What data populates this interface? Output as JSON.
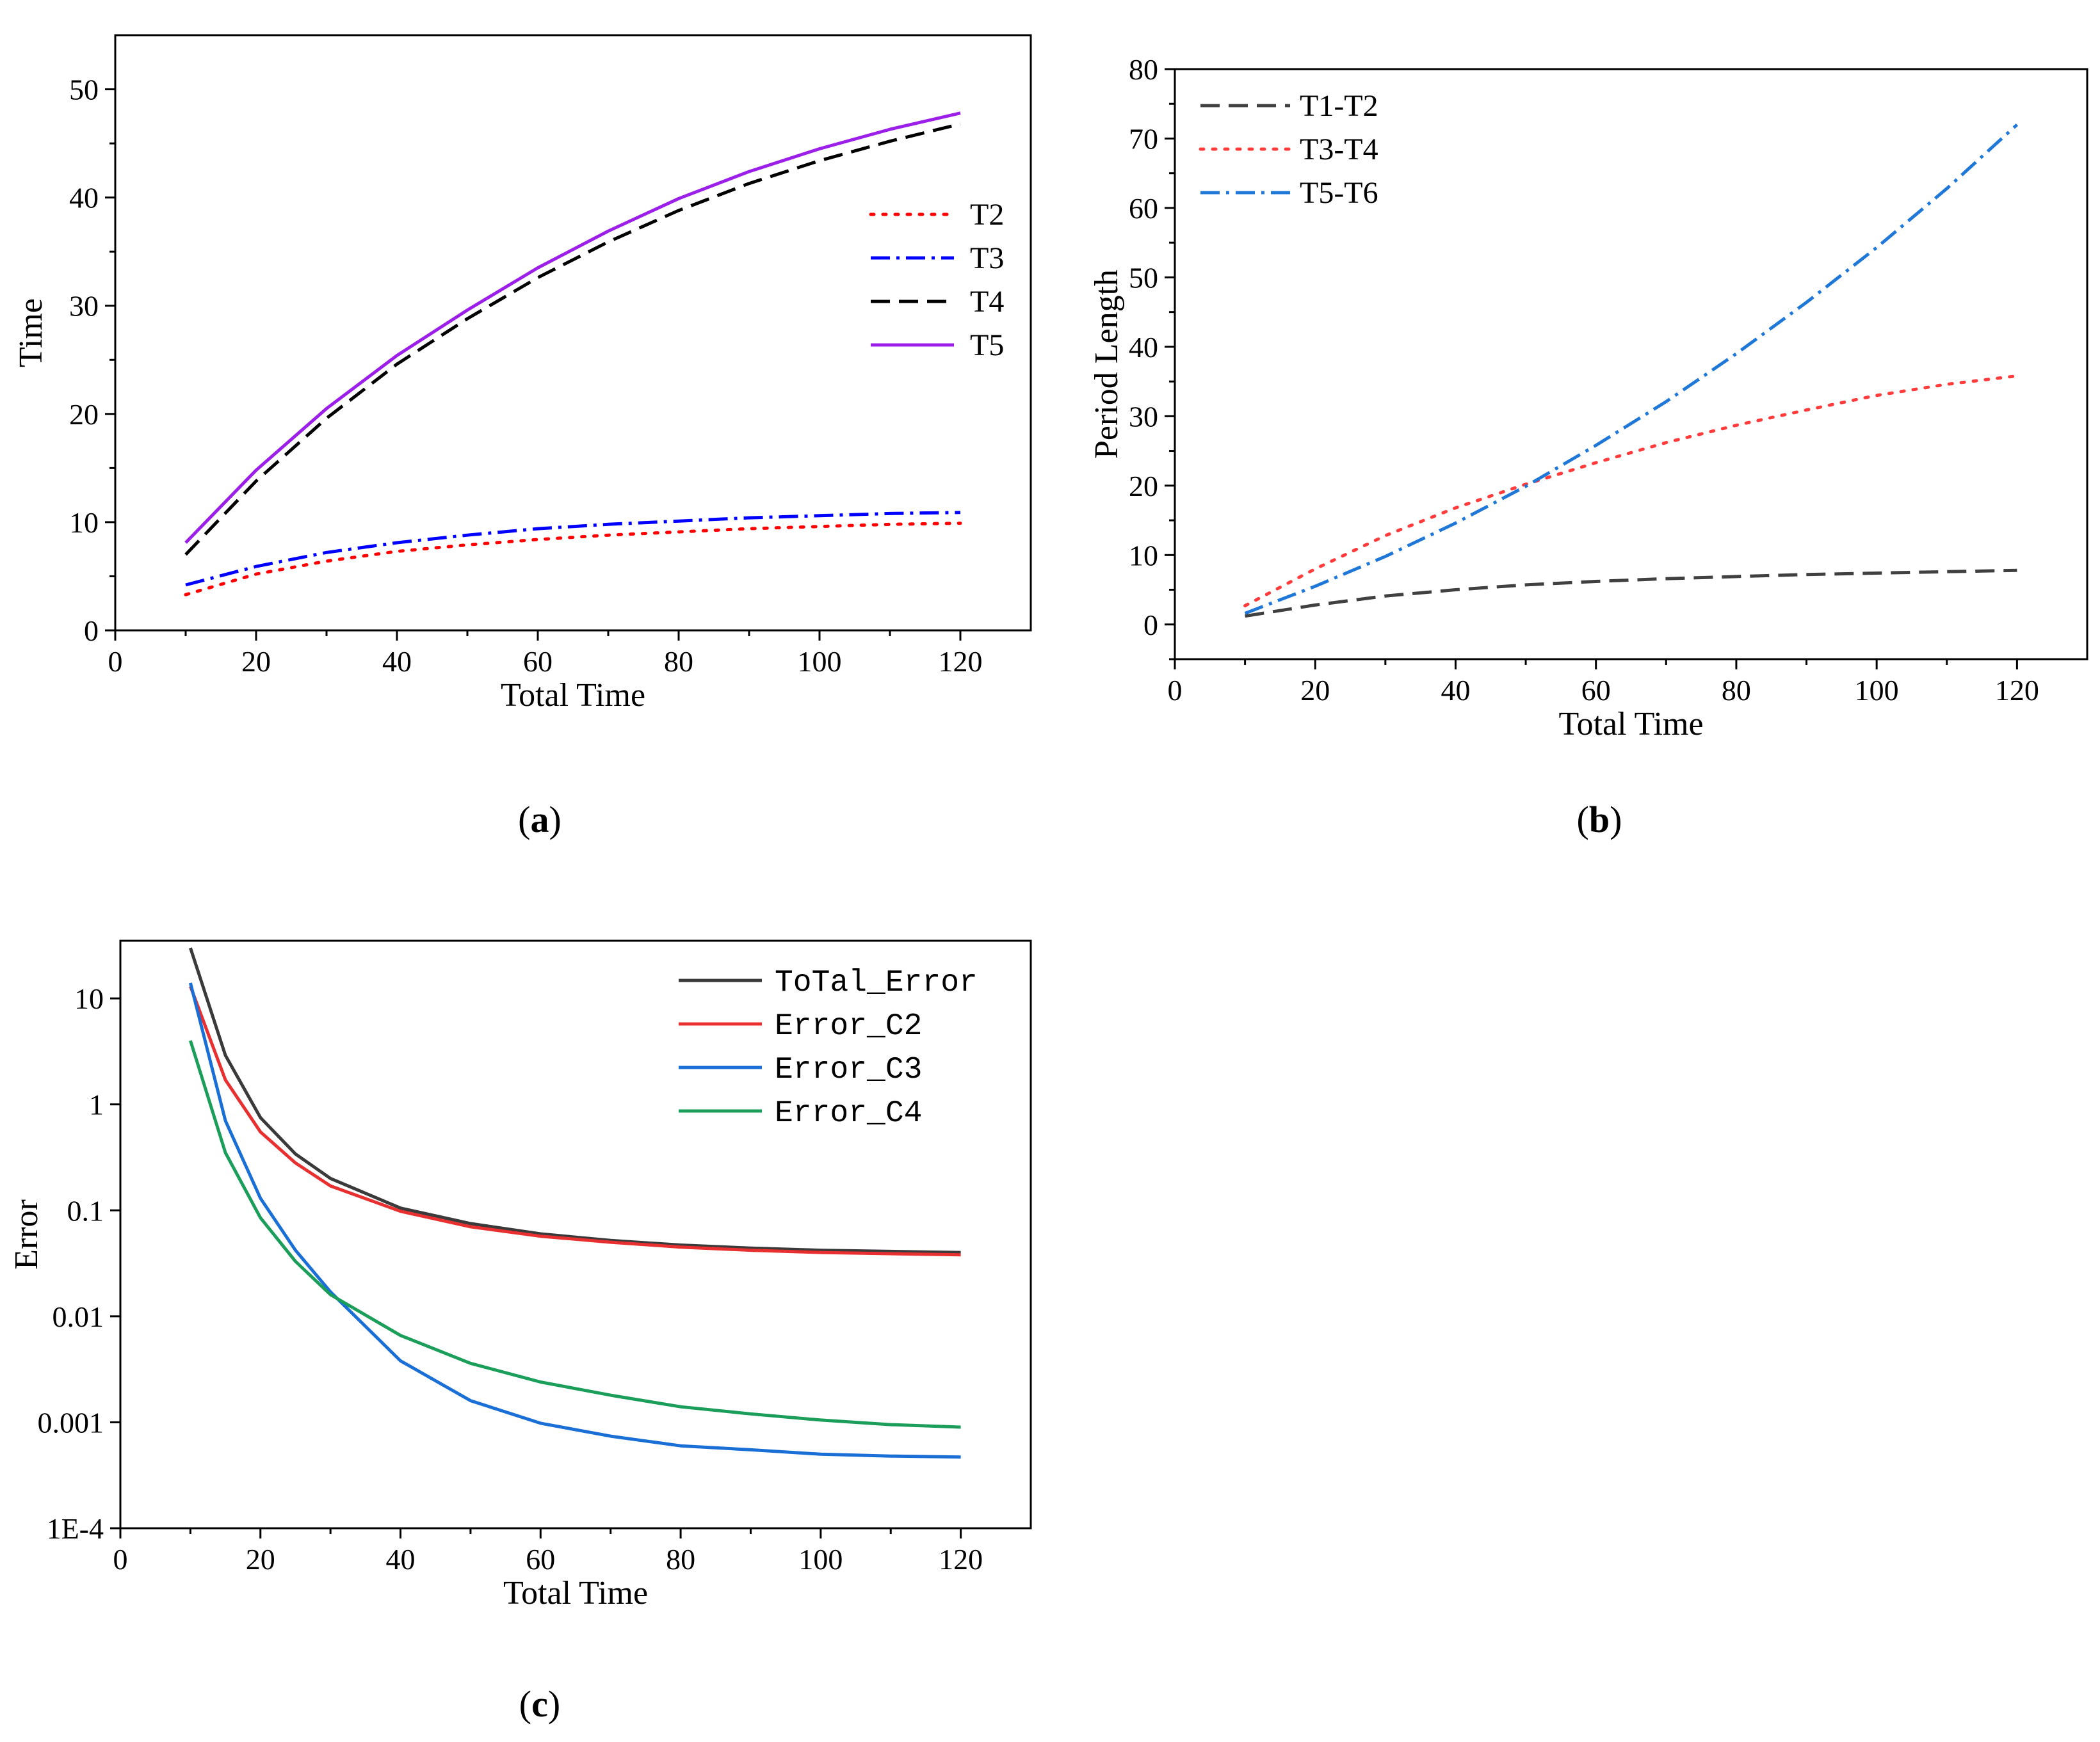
{
  "chart_data": [
    {
      "id": "a",
      "type": "line",
      "caption": "a",
      "xlabel": "Total Time",
      "ylabel": "Time",
      "xlim": [
        0,
        130
      ],
      "ylim": [
        0,
        55
      ],
      "xticks": [
        0,
        20,
        40,
        60,
        80,
        100,
        120
      ],
      "yticks": [
        0,
        10,
        20,
        30,
        40,
        50
      ],
      "legend_position": "right",
      "x": [
        10,
        20,
        30,
        40,
        50,
        60,
        70,
        80,
        90,
        100,
        110,
        120
      ],
      "series": [
        {
          "name": "T2",
          "color": "#ff0000",
          "dash": "dot",
          "values": [
            3.3,
            5.2,
            6.4,
            7.3,
            7.9,
            8.4,
            8.8,
            9.1,
            9.4,
            9.6,
            9.8,
            9.9
          ]
        },
        {
          "name": "T3",
          "color": "#0000ff",
          "dash": "dashdot",
          "values": [
            4.2,
            5.9,
            7.2,
            8.1,
            8.8,
            9.4,
            9.8,
            10.1,
            10.4,
            10.6,
            10.8,
            10.9
          ]
        },
        {
          "name": "T4",
          "color": "#000000",
          "dash": "dash",
          "values": [
            7.0,
            13.8,
            19.6,
            24.6,
            28.8,
            32.6,
            35.9,
            38.8,
            41.3,
            43.4,
            45.2,
            46.8
          ]
        },
        {
          "name": "T5",
          "color": "#9b1fe8",
          "dash": "solid",
          "values": [
            8.1,
            14.8,
            20.5,
            25.4,
            29.6,
            33.5,
            36.9,
            39.9,
            42.4,
            44.5,
            46.3,
            47.8
          ]
        }
      ]
    },
    {
      "id": "b",
      "type": "line",
      "caption": "b",
      "xlabel": "Total Time",
      "ylabel": "Period Length",
      "xlim": [
        0,
        130
      ],
      "ylim": [
        -5,
        80
      ],
      "xticks": [
        0,
        20,
        40,
        60,
        80,
        100,
        120
      ],
      "yticks": [
        0,
        10,
        20,
        30,
        40,
        50,
        60,
        70,
        80
      ],
      "legend_position": "top-left",
      "x": [
        10,
        20,
        30,
        40,
        50,
        60,
        70,
        80,
        90,
        100,
        110,
        120
      ],
      "series": [
        {
          "name": "T1-T2",
          "color": "#404040",
          "dash": "dash",
          "values": [
            1.2,
            2.8,
            4.1,
            5.0,
            5.7,
            6.2,
            6.6,
            6.9,
            7.2,
            7.4,
            7.6,
            7.8
          ]
        },
        {
          "name": "T3-T4",
          "color": "#ff3b3b",
          "dash": "dot",
          "values": [
            2.7,
            8.0,
            12.8,
            16.8,
            20.2,
            23.3,
            26.2,
            28.7,
            30.9,
            33.0,
            34.6,
            35.8
          ]
        },
        {
          "name": "T5-T6",
          "color": "#1f78d8",
          "dash": "dashdot",
          "values": [
            1.6,
            5.5,
            9.8,
            14.6,
            19.9,
            25.8,
            32.1,
            39.0,
            46.4,
            54.3,
            62.8,
            72.0
          ]
        }
      ]
    },
    {
      "id": "c",
      "type": "line",
      "caption": "c",
      "xlabel": "Total Time",
      "ylabel": "Error",
      "yscale": "log",
      "xlim": [
        0,
        130
      ],
      "ylim": [
        0.0001,
        35
      ],
      "xticks": [
        0,
        20,
        40,
        60,
        80,
        100,
        120
      ],
      "yticks": [
        0.0001,
        0.001,
        0.01,
        0.1,
        1,
        10
      ],
      "ytick_labels": [
        "1E-4",
        "0.001",
        "0.01",
        "0.1",
        "1",
        "10"
      ],
      "legend_position": "top-right",
      "x": [
        10,
        15,
        20,
        25,
        30,
        40,
        50,
        60,
        70,
        80,
        90,
        100,
        110,
        120
      ],
      "series": [
        {
          "name": "ToTal_Error",
          "color": "#3a3a3a",
          "dash": "solid",
          "values": [
            30,
            2.9,
            0.75,
            0.34,
            0.2,
            0.105,
            0.075,
            0.06,
            0.052,
            0.047,
            0.044,
            0.042,
            0.041,
            0.04
          ]
        },
        {
          "name": "Error_C2",
          "color": "#e83030",
          "dash": "solid",
          "values": [
            13,
            1.7,
            0.55,
            0.28,
            0.17,
            0.098,
            0.07,
            0.057,
            0.05,
            0.045,
            0.042,
            0.04,
            0.039,
            0.038
          ]
        },
        {
          "name": "Error_C3",
          "color": "#1a6fd6",
          "dash": "solid",
          "values": [
            14,
            0.7,
            0.13,
            0.042,
            0.017,
            0.0038,
            0.0016,
            0.00098,
            0.00074,
            0.0006,
            0.00055,
            0.0005,
            0.00048,
            0.00047
          ]
        },
        {
          "name": "Error_C4",
          "color": "#1a9e5a",
          "dash": "solid",
          "values": [
            4,
            0.35,
            0.085,
            0.033,
            0.016,
            0.0066,
            0.0036,
            0.0024,
            0.0018,
            0.0014,
            0.0012,
            0.00105,
            0.00095,
            0.0009
          ]
        }
      ]
    }
  ]
}
